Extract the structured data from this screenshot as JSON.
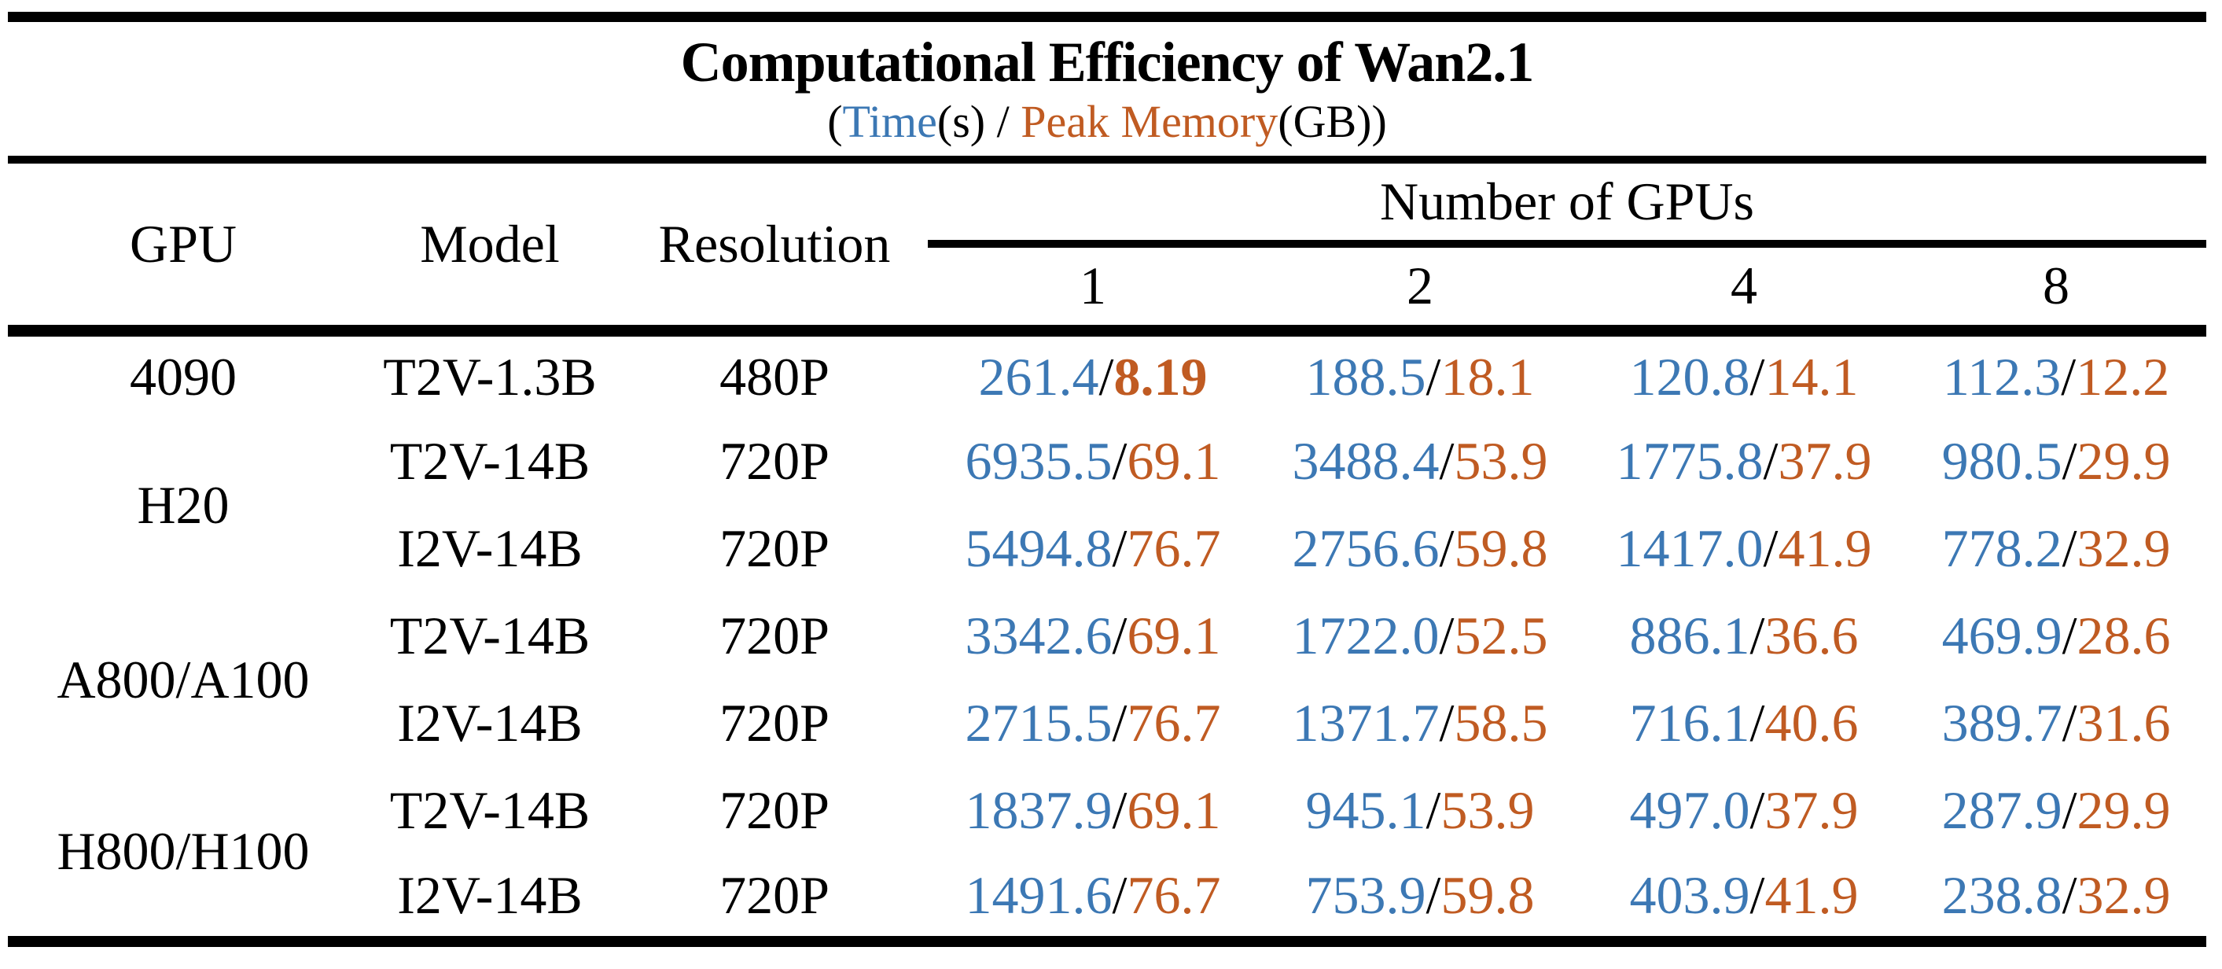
{
  "title": "Computational Efficiency of Wan2.1",
  "subtitle": {
    "open_paren": "(",
    "time_label": "Time",
    "time_unit": "(s)",
    "separator": " / ",
    "memory_label": "Peak Memory",
    "memory_unit": "(GB)",
    "close_paren": ")"
  },
  "colors": {
    "time": "#3C78B4",
    "memory": "#C05B22",
    "rule": "#000000",
    "background": "#FFFFFF",
    "text": "#000000"
  },
  "header": {
    "gpu": "GPU",
    "model": "Model",
    "resolution": "Resolution",
    "group": "Number of GPUs",
    "counts": [
      "1",
      "2",
      "4",
      "8"
    ]
  },
  "cell_separator": "/",
  "rows": [
    {
      "gpu": "4090",
      "gpu_rowspan": 1,
      "model": "T2V-1.3B",
      "resolution": "480P",
      "values": [
        {
          "time": "261.4",
          "memory": "8.19",
          "memory_bold": true
        },
        {
          "time": "188.5",
          "memory": "18.1"
        },
        {
          "time": "120.8",
          "memory": "14.1"
        },
        {
          "time": "112.3",
          "memory": "12.2"
        }
      ]
    },
    {
      "gpu": "H20",
      "gpu_rowspan": 2,
      "model": "T2V-14B",
      "resolution": "720P",
      "values": [
        {
          "time": "6935.5",
          "memory": "69.1"
        },
        {
          "time": "3488.4",
          "memory": "53.9"
        },
        {
          "time": "1775.8",
          "memory": "37.9"
        },
        {
          "time": "980.5",
          "memory": "29.9"
        }
      ]
    },
    {
      "model": "I2V-14B",
      "resolution": "720P",
      "values": [
        {
          "time": "5494.8",
          "memory": "76.7"
        },
        {
          "time": "2756.6",
          "memory": "59.8"
        },
        {
          "time": "1417.0",
          "memory": "41.9"
        },
        {
          "time": "778.2",
          "memory": "32.9"
        }
      ]
    },
    {
      "gpu": "A800/A100",
      "gpu_rowspan": 2,
      "model": "T2V-14B",
      "resolution": "720P",
      "values": [
        {
          "time": "3342.6",
          "memory": "69.1"
        },
        {
          "time": "1722.0",
          "memory": "52.5"
        },
        {
          "time": "886.1",
          "memory": "36.6"
        },
        {
          "time": "469.9",
          "memory": "28.6"
        }
      ]
    },
    {
      "model": "I2V-14B",
      "resolution": "720P",
      "values": [
        {
          "time": "2715.5",
          "memory": "76.7"
        },
        {
          "time": "1371.7",
          "memory": "58.5"
        },
        {
          "time": "716.1",
          "memory": "40.6"
        },
        {
          "time": "389.7",
          "memory": "31.6"
        }
      ]
    },
    {
      "gpu": "H800/H100",
      "gpu_rowspan": 2,
      "model": "T2V-14B",
      "resolution": "720P",
      "values": [
        {
          "time": "1837.9",
          "memory": "69.1"
        },
        {
          "time": "945.1",
          "memory": "53.9"
        },
        {
          "time": "497.0",
          "memory": "37.9"
        },
        {
          "time": "287.9",
          "memory": "29.9"
        }
      ]
    },
    {
      "model": "I2V-14B",
      "resolution": "720P",
      "values": [
        {
          "time": "1491.6",
          "memory": "76.7"
        },
        {
          "time": "753.9",
          "memory": "59.8"
        },
        {
          "time": "403.9",
          "memory": "41.9"
        },
        {
          "time": "238.8",
          "memory": "32.9"
        }
      ]
    }
  ]
}
